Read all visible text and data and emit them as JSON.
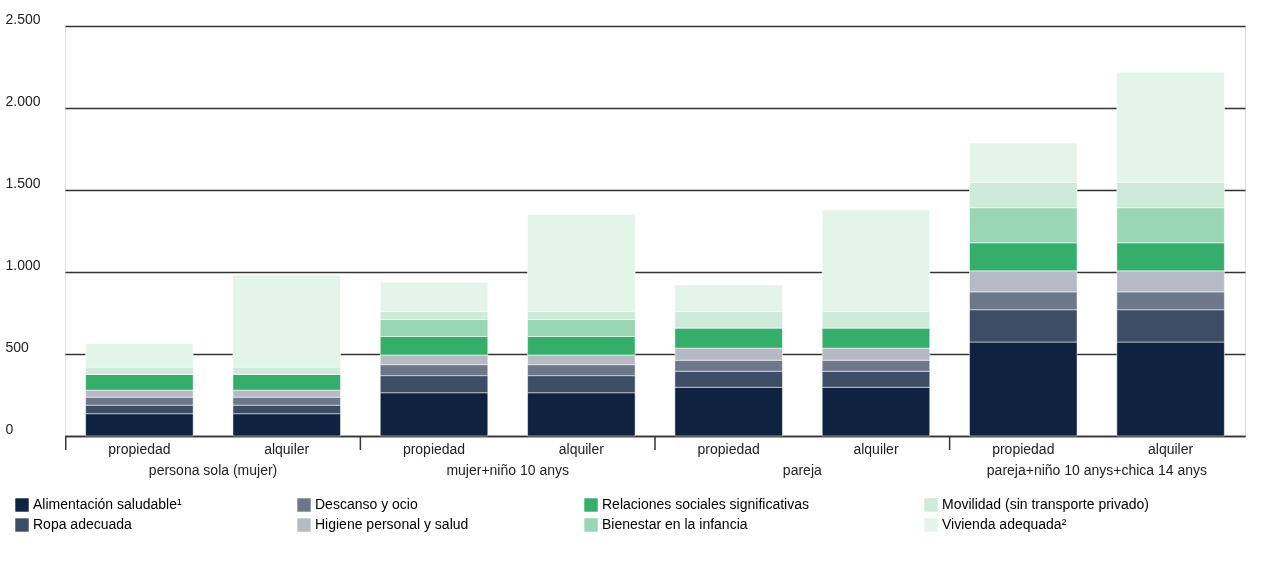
{
  "chart_data": {
    "type": "bar",
    "stacked": true,
    "categories": [
      "propiedad",
      "alquiler",
      "propiedad",
      "alquiler",
      "propiedad",
      "alquiler",
      "propiedad",
      "alquiler"
    ],
    "annotations": [
      "persona sola (mujer)",
      "mujer+niño 10 anys",
      "pareja",
      "pareja+niño 10 anys+chica 14 anys"
    ],
    "series": [
      {
        "name": "Alimentación saludable¹",
        "color": "#0f2240",
        "values": [
          136,
          136,
          264,
          264,
          297,
          297,
          573,
          573
        ]
      },
      {
        "name": "Ropa adecuada",
        "color": "#3d4d66",
        "values": [
          52,
          52,
          104,
          104,
          98,
          98,
          197,
          197
        ]
      },
      {
        "name": "Descanso y ocio",
        "color": "#6c788a",
        "values": [
          49,
          49,
          67,
          67,
          67,
          67,
          109,
          109
        ]
      },
      {
        "name": "Higiene personal y salud",
        "color": "#b5bac4",
        "values": [
          43,
          43,
          59,
          59,
          74,
          74,
          128,
          128
        ]
      },
      {
        "name": "Relaciones sociales significativas",
        "color": "#34ae6a",
        "values": [
          95,
          95,
          113,
          113,
          123,
          123,
          171,
          171
        ]
      },
      {
        "name": "Bienestar en la infancia",
        "color": "#99d6b2",
        "values": [
          0,
          0,
          104,
          104,
          0,
          0,
          214,
          214
        ]
      },
      {
        "name": "Movilidad (sin transporte privado)",
        "color": "#cdeadb",
        "values": [
          45,
          45,
          49,
          49,
          101,
          101,
          154,
          154
        ]
      },
      {
        "name": "Vivienda adequada²",
        "color": "#e3f4ea",
        "values": [
          143,
          561,
          177,
          590,
          161,
          619,
          240,
          672
        ]
      }
    ],
    "ylim": [
      0,
      2500
    ],
    "yticks": [
      0,
      {
        "value": 500,
        "label": "500"
      },
      {
        "value": 1000,
        "label": "1.000"
      },
      {
        "value": 1500,
        "label": "1.500"
      },
      {
        "value": 2000,
        "label": "2.000"
      },
      {
        "value": 2500,
        "label": "2.500"
      }
    ],
    "grid": "y",
    "legend": "bottom"
  }
}
